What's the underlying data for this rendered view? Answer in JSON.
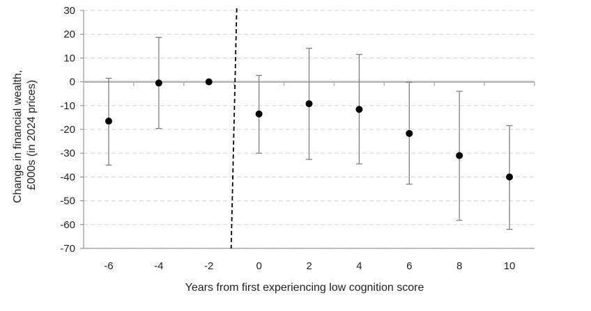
{
  "chart_data": {
    "type": "scatter",
    "title": "",
    "xlabel": "Years from first experiencing low cognition score",
    "ylabel_lines": [
      "Change in financial wealth,",
      "£000s (in 2024 prices)"
    ],
    "x": [
      -6,
      -4,
      -2,
      0,
      2,
      4,
      6,
      8,
      10
    ],
    "xtick_labels": [
      "-6",
      "-4",
      "-2",
      "0",
      "2",
      "4",
      "6",
      "8",
      "10"
    ],
    "y": [
      -16.5,
      -0.5,
      0,
      -13.5,
      -9.2,
      -11.6,
      -21.7,
      -31,
      -40
    ],
    "ci_lower": [
      -35,
      -19.6,
      0,
      -30,
      -32.6,
      -34.5,
      -43,
      -58.2,
      -62
    ],
    "ci_upper": [
      1.5,
      18.7,
      0,
      2.7,
      14.1,
      11.5,
      -0.2,
      -4,
      -18.4
    ],
    "ylim": [
      -70,
      30
    ],
    "yticks": [
      30,
      20,
      10,
      0,
      -10,
      -20,
      -30,
      -40,
      -50,
      -60,
      -70
    ],
    "ytick_labels": [
      "30",
      "20",
      "10",
      "0",
      "-10",
      "-20",
      "-30",
      "-40",
      "-50",
      "-60",
      "-70"
    ],
    "reference_line_x": -1,
    "grid": "horizontal dashed",
    "colors": {
      "points": "#000000",
      "error_bars": "#7f7f7f",
      "zero_line": "#b3b3b3",
      "grid": "#d9d9d9",
      "reference_line": "#000000",
      "axis": "#808080"
    }
  }
}
